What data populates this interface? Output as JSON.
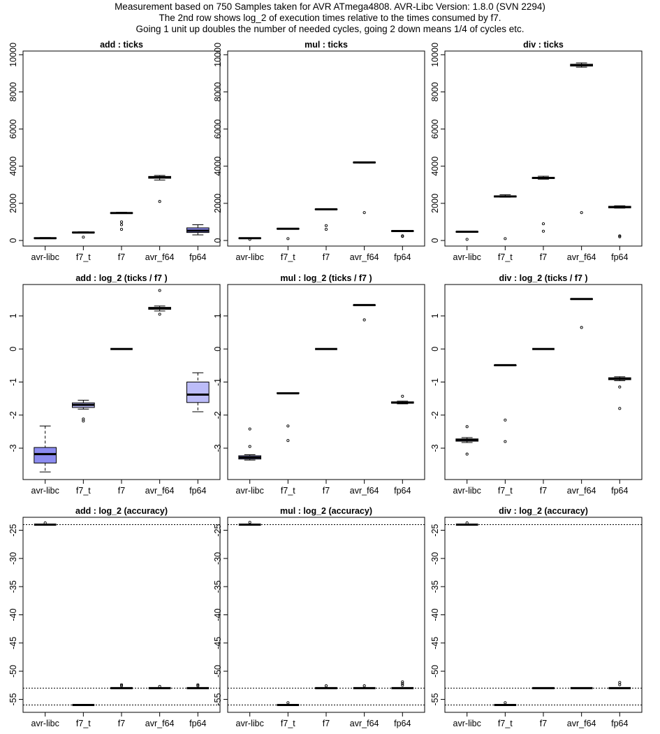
{
  "header": {
    "line1": "Measurement based on 750 Samples taken for AVR ATmega4808.  AVR-Libc Version: 1.8.0 (SVN 2294)",
    "line2": "The 2nd row shows log_2 of execution times relative to the times  consumed by f7.",
    "line3": "Going 1 unit up doubles the number of needed cycles, going 2 down means 1/4 of cycles etc."
  },
  "colors": {
    "box_fill": "#8c8cf0",
    "box_fill_light": "#bcbcf8",
    "line": "#000000"
  },
  "chart_data": [
    {
      "id": "add-ticks",
      "type": "boxplot",
      "title": "add :  ticks",
      "categories": [
        "avr-libc",
        "f7_t",
        "f7",
        "avr_f64",
        "fp64"
      ],
      "ylim": [
        -300,
        10200
      ],
      "yticks": [
        0,
        2000,
        4000,
        6000,
        8000,
        10000
      ],
      "boxes": [
        {
          "min": 100,
          "q1": 110,
          "median": 125,
          "q3": 145,
          "max": 160,
          "outliers": []
        },
        {
          "min": 400,
          "q1": 415,
          "median": 430,
          "q3": 450,
          "max": 470,
          "outliers": [
            180
          ]
        },
        {
          "min": 1450,
          "q1": 1460,
          "median": 1480,
          "q3": 1500,
          "max": 1520,
          "outliers": [
            1000,
            850,
            600
          ]
        },
        {
          "min": 3250,
          "q1": 3350,
          "median": 3400,
          "q3": 3450,
          "max": 3500,
          "outliers": [
            2100
          ]
        },
        {
          "min": 300,
          "q1": 430,
          "median": 530,
          "q3": 680,
          "max": 850,
          "outliers": []
        }
      ]
    },
    {
      "id": "mul-ticks",
      "type": "boxplot",
      "title": "mul :  ticks",
      "categories": [
        "avr-libc",
        "f7_t",
        "f7",
        "avr_f64",
        "fp64"
      ],
      "ylim": [
        -300,
        10200
      ],
      "yticks": [
        0,
        2000,
        4000,
        6000,
        8000,
        10000
      ],
      "boxes": [
        {
          "min": 110,
          "q1": 115,
          "median": 125,
          "q3": 135,
          "max": 145,
          "outliers": [
            60
          ]
        },
        {
          "min": 610,
          "q1": 615,
          "median": 630,
          "q3": 645,
          "max": 655,
          "outliers": [
            100
          ]
        },
        {
          "min": 1660,
          "q1": 1665,
          "median": 1680,
          "q3": 1690,
          "max": 1700,
          "outliers": [
            800,
            600
          ]
        },
        {
          "min": 4170,
          "q1": 4180,
          "median": 4200,
          "q3": 4220,
          "max": 4230,
          "outliers": [
            1500
          ]
        },
        {
          "min": 490,
          "q1": 495,
          "median": 510,
          "q3": 520,
          "max": 530,
          "outliers": [
            250,
            220
          ]
        }
      ]
    },
    {
      "id": "div-ticks",
      "type": "boxplot",
      "title": "div :  ticks",
      "categories": [
        "avr-libc",
        "f7_t",
        "f7",
        "avr_f64",
        "fp64"
      ],
      "ylim": [
        -300,
        10200
      ],
      "yticks": [
        0,
        2000,
        4000,
        6000,
        8000,
        10000
      ],
      "boxes": [
        {
          "min": 450,
          "q1": 455,
          "median": 470,
          "q3": 480,
          "max": 490,
          "outliers": [
            60
          ]
        },
        {
          "min": 2330,
          "q1": 2340,
          "median": 2370,
          "q3": 2400,
          "max": 2460,
          "outliers": [
            100
          ]
        },
        {
          "min": 3300,
          "q1": 3330,
          "median": 3370,
          "q3": 3400,
          "max": 3460,
          "outliers": [
            900,
            500
          ]
        },
        {
          "min": 9330,
          "q1": 9390,
          "median": 9440,
          "q3": 9490,
          "max": 9560,
          "outliers": [
            1500
          ]
        },
        {
          "min": 1740,
          "q1": 1760,
          "median": 1800,
          "q3": 1840,
          "max": 1870,
          "outliers": [
            250,
            200
          ]
        }
      ]
    },
    {
      "id": "add-log2",
      "type": "boxplot",
      "title": "add :  log_2 (ticks /  f7 )",
      "categories": [
        "avr-libc",
        "f7_t",
        "f7",
        "avr_f64",
        "fp64"
      ],
      "ylim": [
        -3.95,
        1.95
      ],
      "yticks": [
        -3,
        -2,
        -1,
        0,
        1
      ],
      "boxes": [
        {
          "min": -3.72,
          "q1": -3.45,
          "median": -3.18,
          "q3": -2.98,
          "max": -2.33,
          "outliers": [],
          "fill": "box_fill"
        },
        {
          "min": -1.82,
          "q1": -1.77,
          "median": -1.69,
          "q3": -1.63,
          "max": -1.55,
          "outliers": [
            -2.12,
            -2.18
          ],
          "fill": "box_fill_light"
        },
        {
          "min": 0,
          "q1": 0,
          "median": 0,
          "q3": 0,
          "max": 0,
          "outliers": []
        },
        {
          "min": 1.15,
          "q1": 1.2,
          "median": 1.23,
          "q3": 1.26,
          "max": 1.3,
          "outliers": [
            1.77,
            1.05
          ]
        },
        {
          "min": -1.9,
          "q1": -1.62,
          "median": -1.38,
          "q3": -1.0,
          "max": -0.72,
          "outliers": [],
          "fill": "box_fill_light"
        }
      ]
    },
    {
      "id": "mul-log2",
      "type": "boxplot",
      "title": "mul :  log_2 (ticks /  f7 )",
      "categories": [
        "avr-libc",
        "f7_t",
        "f7",
        "avr_f64",
        "fp64"
      ],
      "ylim": [
        -3.95,
        1.95
      ],
      "yticks": [
        -3,
        -2,
        -1,
        0,
        1
      ],
      "boxes": [
        {
          "min": -3.36,
          "q1": -3.33,
          "median": -3.28,
          "q3": -3.23,
          "max": -3.2,
          "outliers": [
            -2.42,
            -2.95
          ]
        },
        {
          "min": -1.34,
          "q1": -1.34,
          "median": -1.34,
          "q3": -1.33,
          "max": -1.33,
          "outliers": [
            -2.33,
            -2.77
          ]
        },
        {
          "min": 0,
          "q1": 0,
          "median": 0,
          "q3": 0,
          "max": 0,
          "outliers": []
        },
        {
          "min": 1.32,
          "q1": 1.32,
          "median": 1.33,
          "q3": 1.33,
          "max": 1.34,
          "outliers": [
            0.88
          ]
        },
        {
          "min": -1.66,
          "q1": -1.64,
          "median": -1.62,
          "q3": -1.6,
          "max": -1.58,
          "outliers": [
            -1.43
          ]
        }
      ]
    },
    {
      "id": "div-log2",
      "type": "boxplot",
      "title": "div :  log_2 (ticks /  f7 )",
      "categories": [
        "avr-libc",
        "f7_t",
        "f7",
        "avr_f64",
        "fp64"
      ],
      "ylim": [
        -3.95,
        1.95
      ],
      "yticks": [
        -3,
        -2,
        -1,
        0,
        1
      ],
      "boxes": [
        {
          "min": -2.83,
          "q1": -2.79,
          "median": -2.75,
          "q3": -2.72,
          "max": -2.68,
          "outliers": [
            -2.35,
            -3.18
          ]
        },
        {
          "min": -0.5,
          "q1": -0.5,
          "median": -0.49,
          "q3": -0.49,
          "max": -0.48,
          "outliers": [
            -2.15,
            -2.8
          ]
        },
        {
          "min": 0,
          "q1": 0,
          "median": 0,
          "q3": 0,
          "max": 0,
          "outliers": []
        },
        {
          "min": 1.5,
          "q1": 1.5,
          "median": 1.51,
          "q3": 1.52,
          "max": 1.53,
          "outliers": [
            0.65
          ]
        },
        {
          "min": -0.96,
          "q1": -0.93,
          "median": -0.9,
          "q3": -0.87,
          "max": -0.84,
          "outliers": [
            -1.15,
            -1.8
          ]
        }
      ]
    },
    {
      "id": "add-accuracy",
      "type": "boxplot",
      "title": "add : log_2 (accuracy)",
      "categories": [
        "avr-libc",
        "f7_t",
        "f7",
        "avr_f64",
        "fp64"
      ],
      "ylim": [
        -57.3,
        -22.7
      ],
      "yticks": [
        -55,
        -50,
        -45,
        -40,
        -35,
        -30,
        -25
      ],
      "hlines": [
        -24,
        -53,
        -56
      ],
      "boxes": [
        {
          "min": -24,
          "q1": -24,
          "median": -24,
          "q3": -24,
          "max": -24,
          "outliers": [
            -23.7
          ]
        },
        {
          "min": -56,
          "q1": -56,
          "median": -56,
          "q3": -56,
          "max": -56,
          "outliers": []
        },
        {
          "min": -53,
          "q1": -53,
          "median": -53,
          "q3": -53,
          "max": -53,
          "outliers": [
            -52.6,
            -52.4
          ]
        },
        {
          "min": -53,
          "q1": -53,
          "median": -53,
          "q3": -53,
          "max": -53,
          "outliers": [
            -52.7
          ]
        },
        {
          "min": -53,
          "q1": -53,
          "median": -53,
          "q3": -53,
          "max": -53,
          "outliers": [
            -52.6,
            -52.4
          ]
        }
      ]
    },
    {
      "id": "mul-accuracy",
      "type": "boxplot",
      "title": "mul : log_2 (accuracy)",
      "categories": [
        "avr-libc",
        "f7_t",
        "f7",
        "avr_f64",
        "fp64"
      ],
      "ylim": [
        -57.3,
        -22.7
      ],
      "yticks": [
        -55,
        -50,
        -45,
        -40,
        -35,
        -30,
        -25
      ],
      "hlines": [
        -24,
        -53,
        -56
      ],
      "boxes": [
        {
          "min": -24,
          "q1": -24,
          "median": -24,
          "q3": -24,
          "max": -24,
          "outliers": [
            -23.6
          ]
        },
        {
          "min": -56,
          "q1": -56,
          "median": -56,
          "q3": -56,
          "max": -56,
          "outliers": [
            -55.6
          ]
        },
        {
          "min": -53,
          "q1": -53,
          "median": -53,
          "q3": -53,
          "max": -53,
          "outliers": [
            -52.6
          ]
        },
        {
          "min": -53,
          "q1": -53,
          "median": -53,
          "q3": -53,
          "max": -53,
          "outliers": [
            -52.6
          ]
        },
        {
          "min": -53,
          "q1": -53,
          "median": -53,
          "q3": -53,
          "max": -53,
          "outliers": [
            -52.5,
            -52.2,
            -51.9
          ]
        }
      ]
    },
    {
      "id": "div-accuracy",
      "type": "boxplot",
      "title": "div : log_2 (accuracy)",
      "categories": [
        "avr-libc",
        "f7_t",
        "f7",
        "avr_f64",
        "fp64"
      ],
      "ylim": [
        -57.3,
        -22.7
      ],
      "yticks": [
        -55,
        -50,
        -45,
        -40,
        -35,
        -30,
        -25
      ],
      "hlines": [
        -24,
        -53,
        -56
      ],
      "boxes": [
        {
          "min": -24,
          "q1": -24,
          "median": -24,
          "q3": -24,
          "max": -24,
          "outliers": [
            -23.7
          ]
        },
        {
          "min": -56,
          "q1": -56,
          "median": -56,
          "q3": -56,
          "max": -56,
          "outliers": [
            -55.6
          ]
        },
        {
          "min": -53,
          "q1": -53,
          "median": -53,
          "q3": -53,
          "max": -53,
          "outliers": []
        },
        {
          "min": -53,
          "q1": -53,
          "median": -53,
          "q3": -53,
          "max": -53,
          "outliers": []
        },
        {
          "min": -53,
          "q1": -53,
          "median": -53,
          "q3": -53,
          "max": -53,
          "outliers": [
            -52.4,
            -52.0
          ]
        }
      ]
    }
  ]
}
